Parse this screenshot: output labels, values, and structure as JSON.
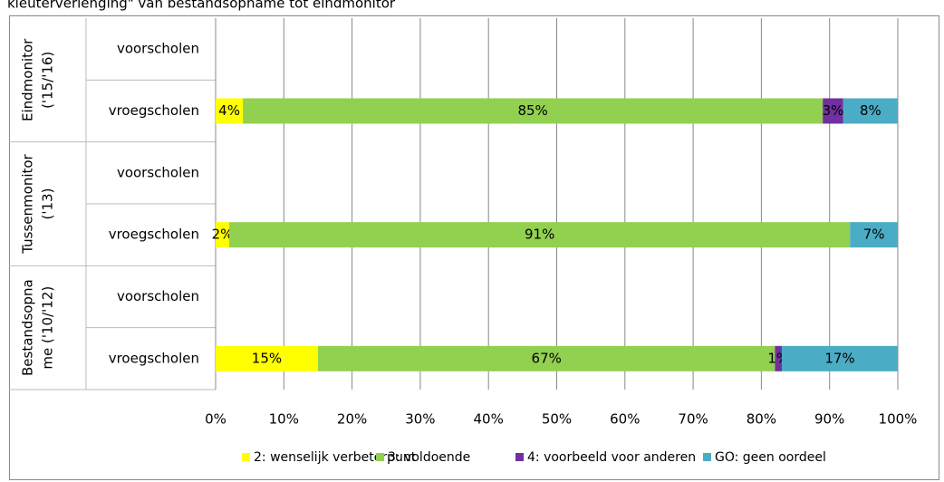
{
  "chart_data": {
    "type": "stacked-bar-horizontal",
    "title": "kleuterverlenging\" van bestandsopname tot eindmonitor",
    "groups": [
      [
        "Eindmonitor",
        "('15/'16)"
      ],
      [
        "Tussenmonitor",
        "('13)"
      ],
      [
        "Bestandsopna",
        "me ('10/'12)"
      ]
    ],
    "categories": [
      "voorscholen",
      "vroegscholen",
      "voorscholen",
      "vroegscholen",
      "voorscholen",
      "vroegscholen"
    ],
    "series": [
      {
        "name": "2: wenselijk verbeterpunt",
        "color": "#ffff00",
        "values": [
          null,
          4,
          null,
          2,
          null,
          15
        ],
        "value_labels": [
          null,
          "4%",
          null,
          "2%",
          null,
          "15%"
        ]
      },
      {
        "name": "3: voldoende",
        "color": "#92d050",
        "values": [
          null,
          85,
          null,
          91,
          null,
          67
        ],
        "value_labels": [
          null,
          "85%",
          null,
          "91%",
          null,
          "67%"
        ]
      },
      {
        "name": "4: voorbeeld voor anderen",
        "color": "#7030a0",
        "values": [
          null,
          3,
          null,
          null,
          null,
          1
        ],
        "value_labels": [
          null,
          "3%",
          null,
          null,
          null,
          "1%"
        ]
      },
      {
        "name": "GO: geen oordeel",
        "color": "#4bacc6",
        "values": [
          null,
          8,
          null,
          7,
          null,
          17
        ],
        "value_labels": [
          null,
          "8%",
          null,
          "7%",
          null,
          "17%"
        ]
      }
    ],
    "xlim": [
      0,
      100
    ],
    "xticks": [
      {
        "value": 0,
        "label": "0%"
      },
      {
        "value": 10,
        "label": "10%"
      },
      {
        "value": 20,
        "label": "20%"
      },
      {
        "value": 30,
        "label": "30%"
      },
      {
        "value": 40,
        "label": "40%"
      },
      {
        "value": 50,
        "label": "50%"
      },
      {
        "value": 60,
        "label": "60%"
      },
      {
        "value": 70,
        "label": "70%"
      },
      {
        "value": 80,
        "label": "80%"
      },
      {
        "value": 90,
        "label": "90%"
      },
      {
        "value": 100,
        "label": "100%"
      }
    ],
    "grid": true,
    "legend": "bottom"
  }
}
